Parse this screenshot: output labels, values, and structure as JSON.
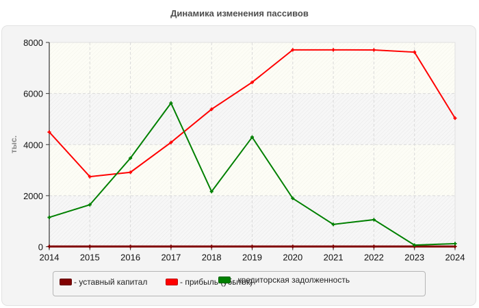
{
  "title": "Динамика изменения пассивов",
  "chart_data": {
    "type": "line",
    "title": "Динамика изменения пассивов",
    "xlabel": "",
    "ylabel": "тыс.",
    "x": [
      2014,
      2015,
      2016,
      2017,
      2018,
      2019,
      2020,
      2021,
      2022,
      2023,
      2024
    ],
    "ylim": [
      0,
      8000
    ],
    "yticks": [
      0,
      2000,
      4000,
      6000,
      8000
    ],
    "grid": true,
    "legend_position": "bottom",
    "series": [
      {
        "name": "уставный капитал",
        "color": "#800000",
        "values": [
          10,
          10,
          10,
          10,
          10,
          10,
          10,
          10,
          10,
          10,
          10
        ]
      },
      {
        "name": "прибыль (убыток)",
        "color": "#ff0000",
        "values": [
          4490,
          2745,
          2915,
          4085,
          5385,
          6440,
          7710,
          7710,
          7705,
          7620,
          5035
        ]
      },
      {
        "name": "кредиторская задолженность",
        "color": "#008000",
        "values": [
          1150,
          1645,
          3470,
          5625,
          2160,
          4290,
          1895,
          875,
          1060,
          65,
          120
        ]
      }
    ]
  },
  "legend": {
    "items": [
      {
        "label": "- уставный капитал",
        "color": "#800000"
      },
      {
        "label": "- прибыль (убыток)",
        "color": "#ff0000"
      },
      {
        "label": "- кредиторская задолженность",
        "color": "#008000"
      }
    ]
  }
}
